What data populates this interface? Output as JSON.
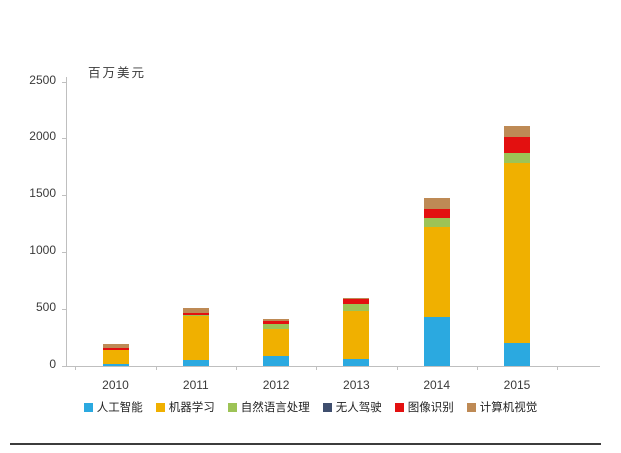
{
  "chart_data": {
    "type": "bar",
    "stacked": true,
    "title": "",
    "unit_label": "百万美元",
    "xlabel": "",
    "ylabel": "百万美元",
    "ylim": [
      0,
      2500
    ],
    "yticks": [
      0,
      500,
      1000,
      1500,
      2000,
      2500
    ],
    "grid": false,
    "legend_position": "bottom",
    "categories": [
      "2010",
      "2011",
      "2012",
      "2013",
      "2014",
      "2015"
    ],
    "series": [
      {
        "name": "人工智能",
        "color": "#2BA9E0",
        "values": [
          20,
          50,
          85,
          58,
          430,
          200
        ]
      },
      {
        "name": "机器学习",
        "color": "#F0B000",
        "values": [
          120,
          390,
          240,
          425,
          795,
          1585
        ]
      },
      {
        "name": "自然语言处理",
        "color": "#9DC356",
        "values": [
          5,
          5,
          42,
          62,
          78,
          85
        ]
      },
      {
        "name": "无人驾驶",
        "color": "#3F4E6E",
        "values": [
          0,
          0,
          0,
          0,
          0,
          0
        ]
      },
      {
        "name": "图像识别",
        "color": "#E31010",
        "values": [
          12,
          25,
          30,
          40,
          76,
          145
        ]
      },
      {
        "name": "计算机视觉",
        "color": "#BE8A55",
        "values": [
          33,
          40,
          13,
          10,
          95,
          90
        ]
      }
    ],
    "totals": [
      190,
      510,
      410,
      595,
      1474,
      2105
    ]
  },
  "colors": {
    "axis": "#BFBFBF",
    "text": "#3A3A3A",
    "background": "#FFFFFF",
    "bottom_rule": "#3C3C3C"
  }
}
